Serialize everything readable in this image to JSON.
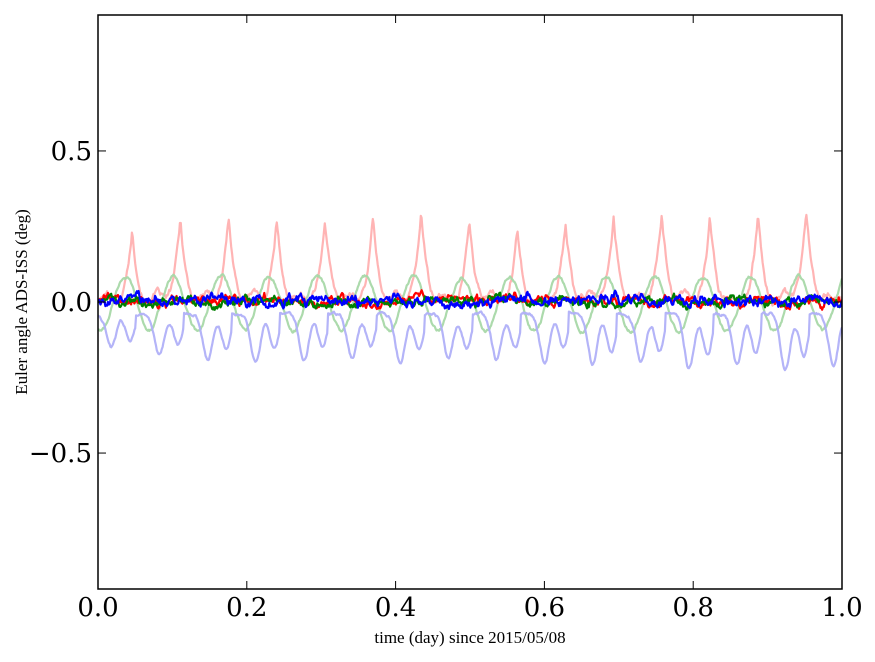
{
  "chart_data": {
    "type": "line",
    "title": "",
    "xlabel": "time (day) since 2015/05/08",
    "ylabel": "Euler angle ADS-ISS (deg)",
    "xlim": [
      0.0,
      1.0
    ],
    "ylim": [
      -0.95,
      0.95
    ],
    "xticks": [
      0.0,
      0.2,
      0.4,
      0.6,
      0.8,
      1.0
    ],
    "xtick_labels": [
      "0.0",
      "0.2",
      "0.4",
      "0.6",
      "0.8",
      "1.0"
    ],
    "yticks": [
      -0.5,
      0.0,
      0.5
    ],
    "ytick_labels": [
      "−0.5",
      "0.0",
      "0.5"
    ],
    "grid": false,
    "legend": "none",
    "series": [
      {
        "color": "#ffb0b0",
        "style": "faded",
        "pattern": "periodic sharp peaks",
        "period_day": 0.0647,
        "baseline": 0.0,
        "peaks": [
          0.24,
          0.27,
          0.28,
          0.28,
          0.28,
          0.27,
          0.3,
          0.27,
          0.24,
          0.26,
          0.28,
          0.29,
          0.28,
          0.29,
          0.3,
          0.32
        ]
      },
      {
        "color": "#a8d8a8",
        "style": "faded",
        "pattern": "periodic smooth oscillation",
        "period_day": 0.0647,
        "baseline": -0.005,
        "amplitude": 0.09
      },
      {
        "color": "#b0b0f8",
        "style": "faded",
        "pattern": "periodic troughs",
        "period_day": 0.0647,
        "baseline": -0.04,
        "troughs": [
          -0.15,
          -0.18,
          -0.19,
          -0.2,
          -0.19,
          -0.18,
          -0.2,
          -0.19,
          -0.19,
          -0.2,
          -0.21,
          -0.2,
          -0.22,
          -0.21,
          -0.22,
          -0.21
        ]
      },
      {
        "color": "#ff0000",
        "style": "solid",
        "pattern": "noise around zero",
        "mean": 0.005,
        "range": [
          -0.05,
          0.06
        ]
      },
      {
        "color": "#008000",
        "style": "solid",
        "pattern": "noise around zero",
        "mean": 0.0,
        "range": [
          -0.04,
          0.05
        ]
      },
      {
        "color": "#0000ff",
        "style": "solid",
        "pattern": "noise around zero",
        "mean": 0.005,
        "range": [
          -0.04,
          0.07
        ]
      }
    ]
  }
}
